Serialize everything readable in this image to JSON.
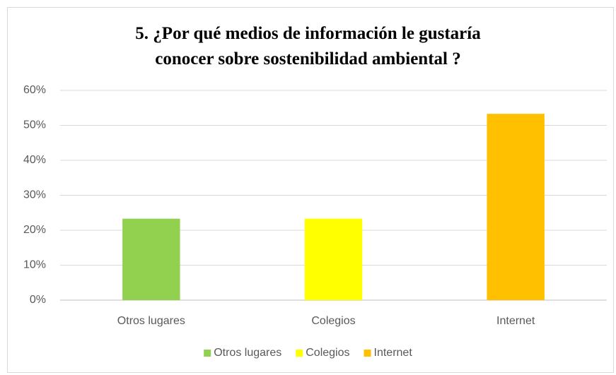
{
  "chart_data": {
    "type": "bar",
    "title": "5. ¿Por qué medios de información le gustaría conocer sobre sostenibilidad ambiental ?",
    "categories": [
      "Otros lugares",
      "Colegios",
      "Internet"
    ],
    "values": [
      23.3,
      23.3,
      53.3
    ],
    "colors": [
      "#92d050",
      "#ffff00",
      "#ffc000"
    ],
    "ylim": [
      0,
      60
    ],
    "yticks": [
      {
        "value": 0,
        "label": "0%"
      },
      {
        "value": 10,
        "label": "10%"
      },
      {
        "value": 20,
        "label": "20%"
      },
      {
        "value": 30,
        "label": "30%"
      },
      {
        "value": 40,
        "label": "40%"
      },
      {
        "value": 50,
        "label": "50%"
      },
      {
        "value": 60,
        "label": "60%"
      }
    ],
    "grid": true,
    "legend": "bottom"
  }
}
